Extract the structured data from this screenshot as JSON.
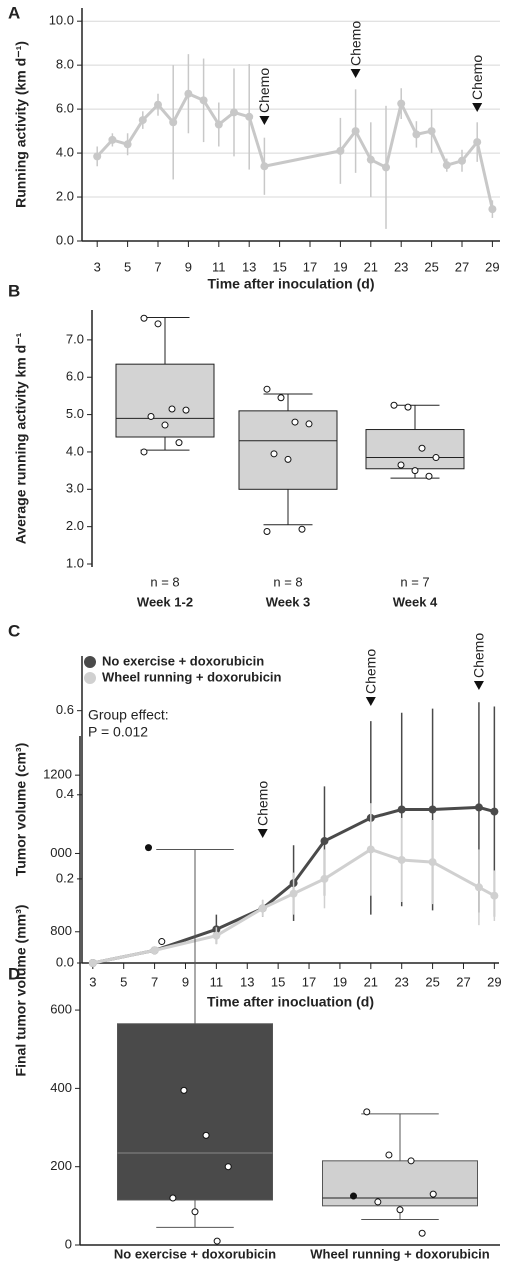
{
  "chart_data": [
    {
      "type": "line",
      "panel_label": "A",
      "xlabel": "Time after inoculation (d)",
      "ylabel": "Running activity (km d⁻¹)",
      "x": [
        3,
        4,
        5,
        6,
        7,
        8,
        9,
        10,
        11,
        12,
        13,
        14,
        19,
        20,
        21,
        22,
        23,
        24,
        25,
        26,
        27,
        28,
        29
      ],
      "series": [
        {
          "color": "#c8c8c8",
          "values": [
            3.85,
            4.6,
            4.4,
            5.5,
            6.2,
            5.4,
            6.7,
            6.4,
            5.3,
            5.85,
            5.65,
            3.4,
            4.1,
            5.0,
            3.7,
            3.35,
            6.25,
            4.85,
            5.0,
            3.45,
            3.65,
            4.5,
            1.45
          ],
          "errors": [
            0.45,
            0.3,
            0.5,
            0.4,
            0.5,
            2.6,
            1.8,
            1.9,
            1.0,
            2.0,
            2.4,
            1.3,
            1.5,
            1.9,
            1.7,
            2.8,
            0.7,
            0.6,
            1.0,
            0.3,
            0.5,
            0.9,
            0.4
          ]
        }
      ],
      "xlim": [
        2,
        29.5
      ],
      "ylim": [
        0,
        10.6
      ],
      "xticks": [
        3,
        5,
        7,
        9,
        11,
        13,
        15,
        17,
        19,
        21,
        23,
        25,
        27,
        29
      ],
      "yticks": [
        {
          "value": 0,
          "label": "0.0"
        },
        {
          "value": 2,
          "label": "2.0"
        },
        {
          "value": 4,
          "label": "4.0"
        },
        {
          "value": 6,
          "label": "6.0"
        },
        {
          "value": 8,
          "label": "8.0"
        },
        {
          "value": 10,
          "label": "10.0"
        }
      ],
      "grid": true,
      "annotations": [
        {
          "text": "Chemo",
          "x": 14
        },
        {
          "text": "Chemo",
          "x": 20
        },
        {
          "text": "Chemo",
          "x": 28
        }
      ]
    },
    {
      "type": "box",
      "panel_label": "B",
      "ylabel": "Average running activity km d⁻¹",
      "categories": [
        "Week 1-2",
        "Week 3",
        "Week 4"
      ],
      "n_labels": [
        "n = 8",
        "n = 8",
        "n = 7"
      ],
      "color": "#d3d3d3",
      "stats": [
        {
          "low": 4.05,
          "q1": 4.4,
          "median": 4.9,
          "q3": 6.35,
          "high": 7.6,
          "points": [
            7.58,
            7.43,
            5.15,
            5.12,
            4.95,
            4.72,
            4.25,
            4.0
          ]
        },
        {
          "low": 2.05,
          "q1": 3.0,
          "median": 4.3,
          "q3": 5.1,
          "high": 5.55,
          "points": [
            5.68,
            5.45,
            4.8,
            4.75,
            3.95,
            3.8,
            1.93,
            1.87
          ]
        },
        {
          "low": 3.3,
          "q1": 3.55,
          "median": 3.85,
          "q3": 4.6,
          "high": 5.25,
          "points": [
            5.25,
            5.2,
            4.1,
            3.85,
            3.65,
            3.5,
            3.35
          ]
        }
      ],
      "ylim": [
        0.92,
        7.8
      ],
      "yticks": [
        {
          "value": 1,
          "label": "1.0"
        },
        {
          "value": 2,
          "label": "2.0"
        },
        {
          "value": 3,
          "label": "3.0"
        },
        {
          "value": 4,
          "label": "4.0"
        },
        {
          "value": 5,
          "label": "5.0"
        },
        {
          "value": 6,
          "label": "6.0"
        },
        {
          "value": 7,
          "label": "7.0"
        }
      ]
    },
    {
      "type": "line",
      "panel_label": "C",
      "xlabel": "Time after inocluation (d)",
      "ylabel": "Tumor volume (cm³)",
      "x": [
        3,
        7,
        11,
        14,
        16,
        18,
        21,
        23,
        25,
        28,
        29
      ],
      "series": [
        {
          "name": "No exercise + doxorubicin",
          "color": "#4a4a4a",
          "values": [
            0.0,
            0.03,
            0.08,
            0.13,
            0.19,
            0.29,
            0.345,
            0.365,
            0.365,
            0.37,
            0.36
          ],
          "errors": [
            0.0,
            0.005,
            0.035,
            0.02,
            0.09,
            0.13,
            0.23,
            0.23,
            0.24,
            0.25,
            0.25
          ]
        },
        {
          "name": "Wheel running + doxorubicin",
          "color": "#d0d0d0",
          "values": [
            0.0,
            0.03,
            0.065,
            0.13,
            0.165,
            0.2,
            0.27,
            0.245,
            0.24,
            0.18,
            0.16
          ],
          "errors": [
            0.0,
            0.005,
            0.02,
            0.02,
            0.05,
            0.07,
            0.11,
            0.1,
            0.1,
            0.09,
            0.06
          ]
        }
      ],
      "xlim": [
        2.3,
        29.3
      ],
      "ylim": [
        0,
        0.73
      ],
      "xticks": [
        3,
        5,
        7,
        9,
        11,
        13,
        15,
        17,
        19,
        21,
        23,
        25,
        27,
        29
      ],
      "yticks": [
        {
          "value": 0,
          "label": "0.0"
        },
        0.2,
        0.4,
        0.6
      ],
      "legend": "upper left",
      "notes": [
        "Group effect:",
        "P = 0.012"
      ],
      "annotations": [
        {
          "text": "Chemo",
          "x": 14
        },
        {
          "text": "Chemo",
          "x": 21
        },
        {
          "text": "Chemo",
          "x": 28
        }
      ]
    },
    {
      "type": "box",
      "panel_label": "D",
      "ylabel": "Final tumor volume (mm³)",
      "categories": [
        "No exercise + doxorubicin",
        "Wheel running + doxorubicin"
      ],
      "colors": [
        "#4a4a4a",
        "#d0d0d0"
      ],
      "stats": [
        {
          "low": 45,
          "q1": 115,
          "median": 235,
          "q3": 565,
          "high": 1010,
          "points": [
            775,
            395,
            280,
            200,
            120,
            85,
            10
          ],
          "filled_points": [
            1015
          ]
        },
        {
          "low": 65,
          "q1": 100,
          "median": 120,
          "q3": 215,
          "high": 335,
          "points": [
            340,
            230,
            215,
            130,
            110,
            90,
            30
          ],
          "filled_points": [
            125
          ]
        }
      ],
      "ylim": [
        0,
        1300
      ],
      "yticks": [
        0,
        200,
        400,
        600,
        800,
        {
          "value": 1000,
          "label": "000"
        },
        1200
      ]
    }
  ]
}
